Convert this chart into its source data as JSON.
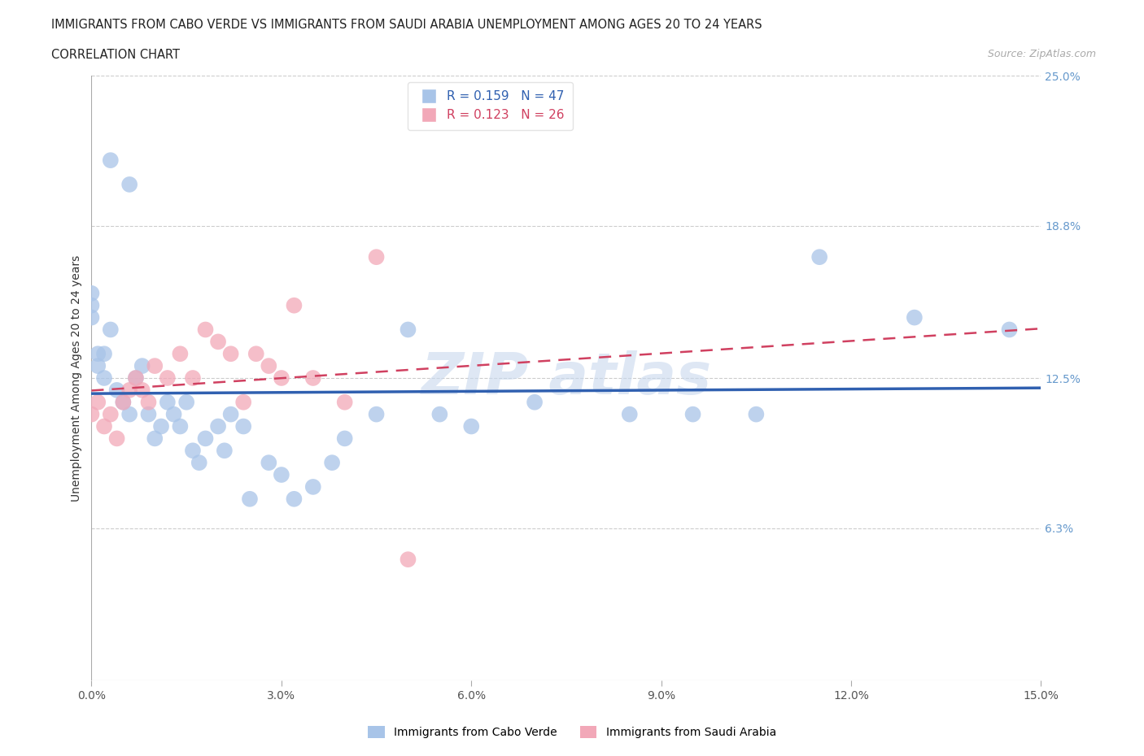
{
  "title_line1": "IMMIGRANTS FROM CABO VERDE VS IMMIGRANTS FROM SAUDI ARABIA UNEMPLOYMENT AMONG AGES 20 TO 24 YEARS",
  "title_line2": "CORRELATION CHART",
  "source_text": "Source: ZipAtlas.com",
  "ylabel": "Unemployment Among Ages 20 to 24 years",
  "x_min": 0.0,
  "x_max": 15.0,
  "y_min": 0.0,
  "y_max": 25.0,
  "y_ticks": [
    6.3,
    12.5,
    18.8,
    25.0
  ],
  "x_ticks": [
    0.0,
    3.0,
    6.0,
    9.0,
    12.0,
    15.0
  ],
  "cabo_verde_label": "Immigrants from Cabo Verde",
  "saudi_arabia_label": "Immigrants from Saudi Arabia",
  "r_cabo": 0.159,
  "n_cabo": 47,
  "r_saudi": 0.123,
  "n_saudi": 26,
  "cabo_color": "#a8c4e8",
  "saudi_color": "#f2a8b8",
  "cabo_line_color": "#3060b0",
  "saudi_line_color": "#d04060",
  "cabo_verde_x": [
    0.3,
    0.6,
    0.0,
    0.0,
    0.0,
    0.1,
    0.1,
    0.2,
    0.2,
    0.3,
    0.4,
    0.5,
    0.6,
    0.7,
    0.8,
    0.9,
    1.0,
    1.1,
    1.2,
    1.3,
    1.4,
    1.5,
    1.6,
    1.7,
    1.8,
    2.0,
    2.1,
    2.2,
    2.4,
    2.5,
    2.8,
    3.0,
    3.2,
    3.5,
    3.8,
    4.0,
    4.5,
    5.0,
    5.5,
    6.0,
    7.0,
    8.5,
    9.5,
    10.5,
    11.5,
    13.0,
    14.5
  ],
  "cabo_verde_y": [
    21.5,
    20.5,
    16.0,
    15.5,
    15.0,
    13.5,
    13.0,
    12.5,
    13.5,
    14.5,
    12.0,
    11.5,
    11.0,
    12.5,
    13.0,
    11.0,
    10.0,
    10.5,
    11.5,
    11.0,
    10.5,
    11.5,
    9.5,
    9.0,
    10.0,
    10.5,
    9.5,
    11.0,
    10.5,
    7.5,
    9.0,
    8.5,
    7.5,
    8.0,
    9.0,
    10.0,
    11.0,
    14.5,
    11.0,
    10.5,
    11.5,
    11.0,
    11.0,
    11.0,
    17.5,
    15.0,
    14.5
  ],
  "saudi_arabia_x": [
    0.0,
    0.1,
    0.2,
    0.3,
    0.4,
    0.5,
    0.6,
    0.7,
    0.8,
    0.9,
    1.0,
    1.2,
    1.4,
    1.6,
    1.8,
    2.0,
    2.2,
    2.4,
    2.6,
    2.8,
    3.0,
    3.2,
    3.5,
    4.0,
    4.5,
    5.0
  ],
  "saudi_arabia_y": [
    11.0,
    11.5,
    10.5,
    11.0,
    10.0,
    11.5,
    12.0,
    12.5,
    12.0,
    11.5,
    13.0,
    12.5,
    13.5,
    12.5,
    14.5,
    14.0,
    13.5,
    11.5,
    13.5,
    13.0,
    12.5,
    15.5,
    12.5,
    11.5,
    17.5,
    5.0
  ],
  "watermark_color": "#c8d8ee",
  "background_color": "#ffffff",
  "grid_color": "#cccccc",
  "legend_r_text_color_cabo": "#3060b0",
  "legend_r_text_color_saudi": "#d04060",
  "legend_n_text_color_cabo": "#e06020",
  "legend_n_text_color_saudi": "#e06020"
}
